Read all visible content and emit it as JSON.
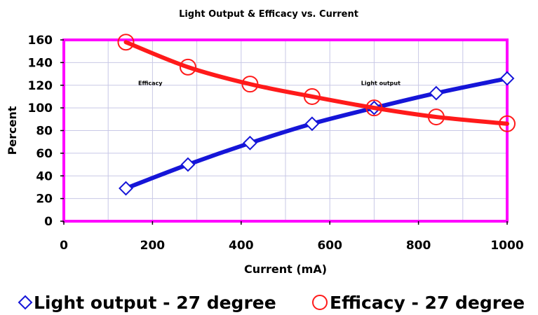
{
  "chart_data": {
    "type": "line",
    "title": "Light Output & Efficacy vs. Current",
    "xlabel": "Current (mA)",
    "ylabel": "Percent",
    "xlim": [
      0,
      1000
    ],
    "ylim": [
      0,
      160
    ],
    "x_ticks": [
      "0",
      "200",
      "400",
      "600",
      "800",
      "1000"
    ],
    "y_ticks": [
      "0",
      "20",
      "40",
      "60",
      "80",
      "100",
      "120",
      "140",
      "160"
    ],
    "grid": true,
    "legend_position": "bottom",
    "series": [
      {
        "name": "Light output - 27 degree",
        "color": "#1515d8",
        "marker": "diamond",
        "x": [
          140,
          280,
          420,
          560,
          700,
          840,
          1000
        ],
        "y": [
          29,
          50,
          69,
          86,
          100,
          113,
          126
        ]
      },
      {
        "name": "Efficacy - 27 degree",
        "color": "#ff1a1a",
        "marker": "circle",
        "x": [
          140,
          280,
          420,
          560,
          700,
          840,
          1000
        ],
        "y": [
          158,
          136,
          121,
          110,
          100,
          92,
          86
        ]
      }
    ],
    "annotations": [
      {
        "text": "Efficacy",
        "x": 195,
        "y": 122
      },
      {
        "text": "Light output",
        "x": 715,
        "y": 122
      }
    ],
    "plot_border_color": "#ff00ff",
    "grid_color": "#c8c8e6"
  }
}
